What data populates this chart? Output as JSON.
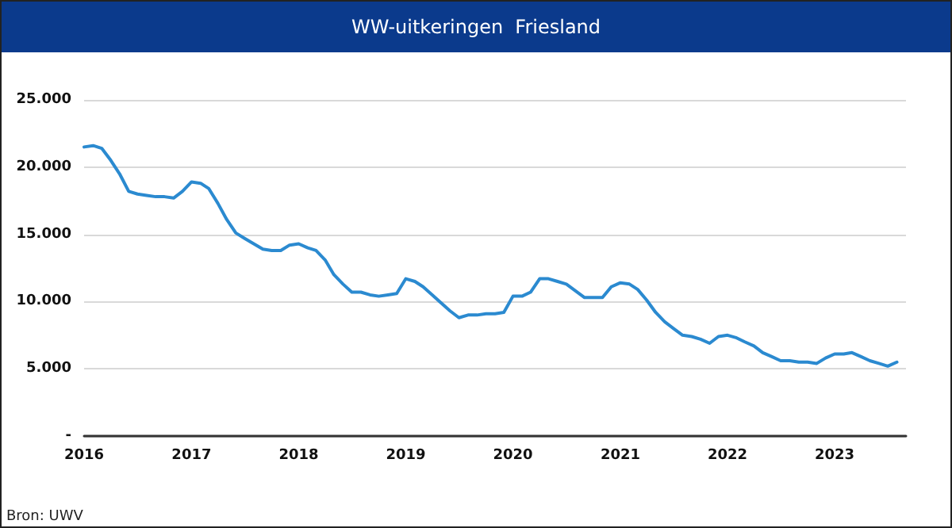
{
  "chart_data": {
    "type": "line",
    "title": "WW-uitkeringen  Friesland",
    "x": [
      "2016-01",
      "2016-02",
      "2016-03",
      "2016-04",
      "2016-05",
      "2016-06",
      "2016-07",
      "2016-08",
      "2016-09",
      "2016-10",
      "2016-11",
      "2016-12",
      "2017-01",
      "2017-02",
      "2017-03",
      "2017-04",
      "2017-05",
      "2017-06",
      "2017-07",
      "2017-08",
      "2017-09",
      "2017-10",
      "2017-11",
      "2017-12",
      "2018-01",
      "2018-02",
      "2018-03",
      "2018-04",
      "2018-05",
      "2018-06",
      "2018-07",
      "2018-08",
      "2018-09",
      "2018-10",
      "2018-11",
      "2018-12",
      "2019-01",
      "2019-02",
      "2019-03",
      "2019-04",
      "2019-05",
      "2019-06",
      "2019-07",
      "2019-08",
      "2019-09",
      "2019-10",
      "2019-11",
      "2019-12",
      "2020-01",
      "2020-02",
      "2020-03",
      "2020-04",
      "2020-05",
      "2020-06",
      "2020-07",
      "2020-08",
      "2020-09",
      "2020-10",
      "2020-11",
      "2020-12",
      "2021-01",
      "2021-02",
      "2021-03",
      "2021-04",
      "2021-05",
      "2021-06",
      "2021-07",
      "2021-08",
      "2021-09",
      "2021-10",
      "2021-11",
      "2021-12",
      "2022-01",
      "2022-02",
      "2022-03",
      "2022-04",
      "2022-05",
      "2022-06",
      "2022-07",
      "2022-08",
      "2022-09",
      "2022-10",
      "2022-11",
      "2022-12",
      "2023-01",
      "2023-02",
      "2023-03",
      "2023-04",
      "2023-05",
      "2023-06",
      "2023-07",
      "2023-08"
    ],
    "series": [
      {
        "color": "#2b8ad0",
        "values": [
          21500,
          21600,
          21400,
          20500,
          19500,
          18200,
          18000,
          17900,
          17800,
          17800,
          17700,
          18200,
          18900,
          18800,
          18400,
          17300,
          16100,
          15100,
          14700,
          14300,
          13900,
          13800,
          13800,
          14200,
          14300,
          14000,
          13800,
          13100,
          12000,
          11300,
          10700,
          10700,
          10500,
          10400,
          10500,
          10600,
          11700,
          11500,
          11100,
          10500,
          9900,
          9300,
          8800,
          9000,
          9000,
          9100,
          9100,
          9200,
          10400,
          10400,
          10700,
          11700,
          11700,
          11500,
          11300,
          10800,
          10300,
          10300,
          10300,
          11100,
          11400,
          11300,
          10900,
          10100,
          9200,
          8500,
          8000,
          7500,
          7400,
          7200,
          6900,
          7400,
          7500,
          7300,
          7000,
          6700,
          6200,
          5900,
          5600,
          5600,
          5500,
          5500,
          5400,
          5800,
          6100,
          6100,
          6200,
          5900,
          5600,
          5400,
          5200,
          5500
        ]
      }
    ],
    "ylim": [
      0,
      25000
    ],
    "yticks": [
      {
        "value": 0,
        "label": "-"
      },
      {
        "value": 5000,
        "label": "5.000"
      },
      {
        "value": 10000,
        "label": "10.000"
      },
      {
        "value": 15000,
        "label": "15.000"
      },
      {
        "value": 20000,
        "label": "20.000"
      },
      {
        "value": 25000,
        "label": "25.000"
      }
    ],
    "xlim": [
      "2016-01",
      "2023-09"
    ],
    "xticks": [
      "2016",
      "2017",
      "2018",
      "2019",
      "2020",
      "2021",
      "2022",
      "2023"
    ],
    "grid": "y",
    "marker": "none",
    "line_style": "solid",
    "annotations": [
      "Bron: UWV"
    ]
  }
}
